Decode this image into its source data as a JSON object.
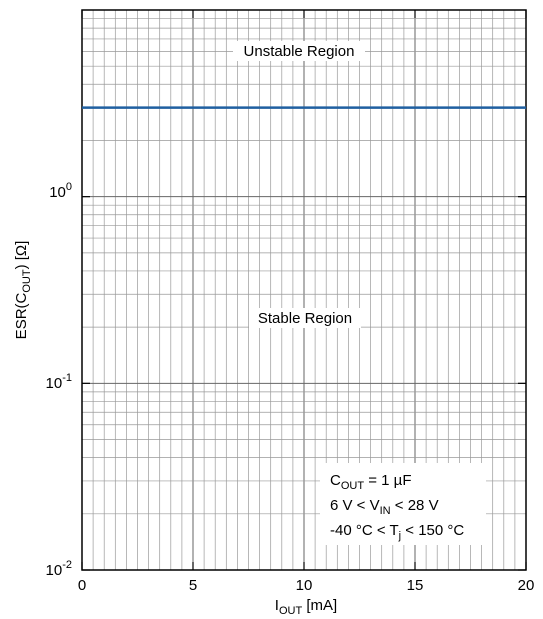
{
  "chart_data": {
    "type": "line",
    "xlabel": {
      "main": "I",
      "sub": "OUT",
      "unit": " [mA]"
    },
    "ylabel": {
      "pre": "ESR(C",
      "sub": "OUT",
      "post": ") [Ω]"
    },
    "x_ticks": [
      "0",
      "5",
      "10",
      "15",
      "20"
    ],
    "x_tick_values": [
      0,
      5,
      10,
      15,
      20
    ],
    "y_ticks": [
      {
        "base": "10",
        "exp": "-2",
        "value": 0.01
      },
      {
        "base": "10",
        "exp": "-1",
        "value": 0.1
      },
      {
        "base": "10",
        "exp": "0",
        "value": 1
      }
    ],
    "xlim": [
      0,
      20
    ],
    "ylim": [
      0.01,
      10
    ],
    "y_scale": "log",
    "grid": true,
    "x_minor_step": 0.5,
    "series": [
      {
        "color": "#1f5fa0",
        "x": [
          0,
          20
        ],
        "y": [
          3,
          3
        ]
      }
    ],
    "annotations": {
      "unstable": "Unstable Region",
      "stable": "Stable Region"
    },
    "conditions": {
      "line1": {
        "a": "C",
        "a_sub": "OUT",
        "b": " = 1 µF"
      },
      "line2": {
        "a": "6 V < V",
        "a_sub": "IN",
        "b": " < 28 V"
      },
      "line3": {
        "a": "-40 °C < T",
        "a_sub": "j",
        "b": " < 150 °C"
      }
    }
  }
}
